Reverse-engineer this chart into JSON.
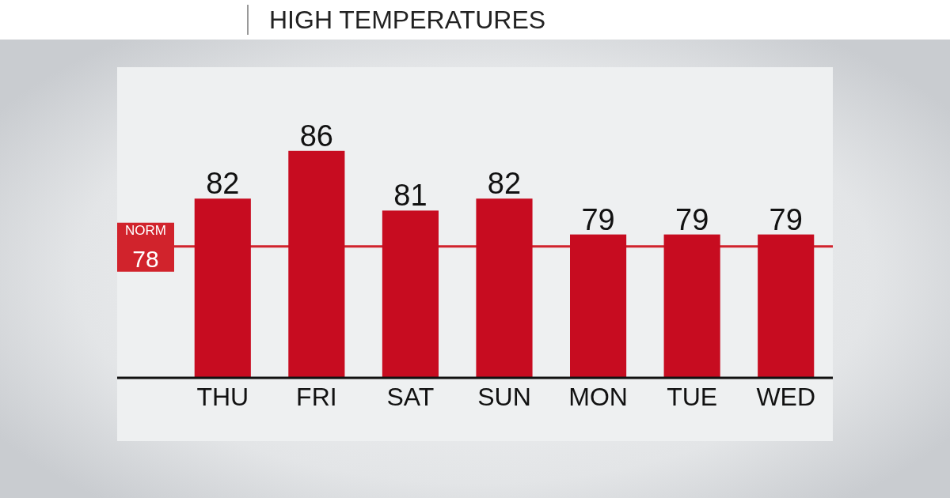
{
  "chart_data": {
    "type": "bar",
    "title": "HIGH TEMPERATURES",
    "categories": [
      "THU",
      "FRI",
      "SAT",
      "SUN",
      "MON",
      "TUE",
      "WED"
    ],
    "values": [
      82,
      86,
      81,
      82,
      79,
      79,
      79
    ],
    "color": "#c70c20",
    "ylim": [
      67,
      93
    ],
    "tick_labels": "x",
    "data_labels": true,
    "ref_lines": [
      {
        "axis": "y",
        "value": 78,
        "label": "NORM 78",
        "color": "#d1232c"
      }
    ]
  }
}
